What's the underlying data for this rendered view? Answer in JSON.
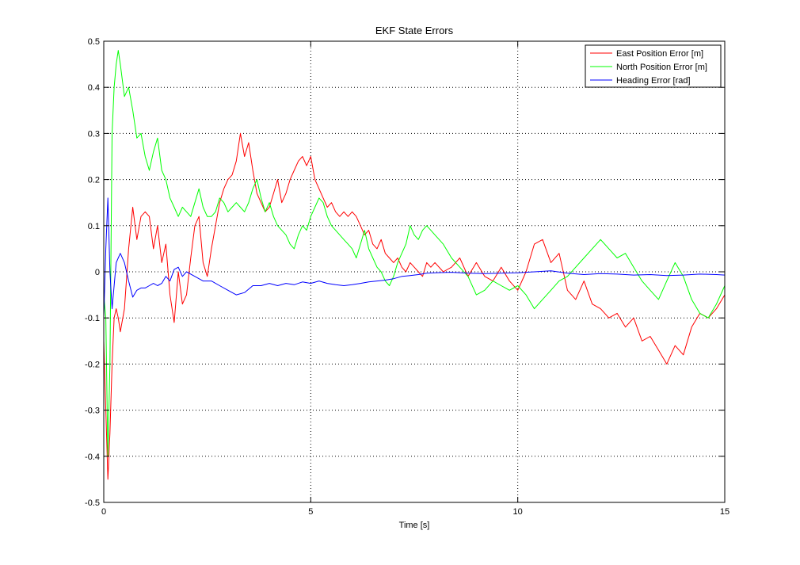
{
  "chart_data": {
    "type": "line",
    "title": "EKF State Errors",
    "xlabel": "Time [s]",
    "ylabel": "",
    "xlim": [
      0,
      15
    ],
    "ylim": [
      -0.5,
      0.5
    ],
    "xticks": [
      0,
      5,
      10,
      15
    ],
    "yticks": [
      -0.5,
      -0.4,
      -0.3,
      -0.2,
      -0.1,
      0,
      0.1,
      0.2,
      0.3,
      0.4,
      0.5
    ],
    "xtick_labels": [
      "0",
      "5",
      "10",
      "15"
    ],
    "ytick_labels": [
      "-0.5",
      "-0.4",
      "-0.3",
      "-0.2",
      "-0.1",
      "0",
      "0.1",
      "0.2",
      "0.3",
      "0.4",
      "0.5"
    ],
    "grid": true,
    "legend_position": "top-right",
    "series": [
      {
        "name": "East Position Error [m]",
        "color": "#ff0000",
        "x": [
          0,
          0.05,
          0.1,
          0.15,
          0.2,
          0.25,
          0.3,
          0.35,
          0.4,
          0.5,
          0.6,
          0.7,
          0.8,
          0.9,
          1.0,
          1.1,
          1.2,
          1.3,
          1.4,
          1.5,
          1.6,
          1.7,
          1.8,
          1.9,
          2.0,
          2.1,
          2.2,
          2.3,
          2.4,
          2.5,
          2.6,
          2.7,
          2.8,
          2.9,
          3.0,
          3.1,
          3.2,
          3.3,
          3.4,
          3.5,
          3.6,
          3.7,
          3.8,
          3.9,
          4.0,
          4.1,
          4.2,
          4.3,
          4.4,
          4.5,
          4.6,
          4.7,
          4.8,
          4.9,
          5.0,
          5.1,
          5.2,
          5.3,
          5.4,
          5.5,
          5.6,
          5.7,
          5.8,
          5.9,
          6.0,
          6.1,
          6.2,
          6.3,
          6.4,
          6.5,
          6.6,
          6.7,
          6.8,
          6.9,
          7.0,
          7.1,
          7.2,
          7.3,
          7.4,
          7.5,
          7.6,
          7.7,
          7.8,
          7.9,
          8.0,
          8.2,
          8.4,
          8.6,
          8.8,
          9.0,
          9.2,
          9.4,
          9.6,
          9.8,
          10.0,
          10.2,
          10.4,
          10.6,
          10.8,
          11.0,
          11.2,
          11.4,
          11.6,
          11.8,
          12.0,
          12.2,
          12.4,
          12.6,
          12.8,
          13.0,
          13.2,
          13.4,
          13.6,
          13.8,
          14.0,
          14.2,
          14.4,
          14.6,
          14.8,
          15.0
        ],
        "values": [
          -0.15,
          -0.3,
          -0.45,
          -0.35,
          -0.2,
          -0.1,
          -0.08,
          -0.1,
          -0.13,
          -0.08,
          0.05,
          0.14,
          0.07,
          0.12,
          0.13,
          0.12,
          0.05,
          0.1,
          0.02,
          0.06,
          -0.05,
          -0.11,
          0.0,
          -0.07,
          -0.05,
          0.03,
          0.1,
          0.12,
          0.02,
          -0.01,
          0.05,
          0.1,
          0.15,
          0.18,
          0.2,
          0.21,
          0.24,
          0.3,
          0.25,
          0.28,
          0.22,
          0.17,
          0.15,
          0.13,
          0.14,
          0.17,
          0.2,
          0.15,
          0.17,
          0.2,
          0.22,
          0.24,
          0.25,
          0.23,
          0.25,
          0.2,
          0.18,
          0.16,
          0.14,
          0.15,
          0.13,
          0.12,
          0.13,
          0.12,
          0.13,
          0.12,
          0.1,
          0.08,
          0.09,
          0.06,
          0.05,
          0.07,
          0.04,
          0.03,
          0.02,
          0.03,
          0.01,
          0.0,
          0.02,
          0.01,
          0.0,
          -0.01,
          0.02,
          0.01,
          0.02,
          0.0,
          0.01,
          0.03,
          -0.01,
          0.02,
          -0.01,
          -0.02,
          0.01,
          -0.02,
          -0.04,
          0.0,
          0.06,
          0.07,
          0.02,
          0.04,
          -0.04,
          -0.06,
          -0.02,
          -0.07,
          -0.08,
          -0.1,
          -0.09,
          -0.12,
          -0.1,
          -0.15,
          -0.14,
          -0.17,
          -0.2,
          -0.16,
          -0.18,
          -0.12,
          -0.09,
          -0.1,
          -0.08,
          -0.05
        ]
      },
      {
        "name": "North Position Error [m]",
        "color": "#00ff00",
        "x": [
          0,
          0.05,
          0.1,
          0.15,
          0.2,
          0.25,
          0.3,
          0.35,
          0.4,
          0.5,
          0.6,
          0.7,
          0.8,
          0.9,
          1.0,
          1.1,
          1.2,
          1.3,
          1.4,
          1.5,
          1.6,
          1.7,
          1.8,
          1.9,
          2.0,
          2.1,
          2.2,
          2.3,
          2.4,
          2.5,
          2.6,
          2.7,
          2.8,
          2.9,
          3.0,
          3.1,
          3.2,
          3.3,
          3.4,
          3.5,
          3.6,
          3.7,
          3.8,
          3.9,
          4.0,
          4.1,
          4.2,
          4.3,
          4.4,
          4.5,
          4.6,
          4.7,
          4.8,
          4.9,
          5.0,
          5.1,
          5.2,
          5.3,
          5.4,
          5.5,
          5.6,
          5.7,
          5.8,
          5.9,
          6.0,
          6.1,
          6.2,
          6.3,
          6.4,
          6.5,
          6.6,
          6.7,
          6.8,
          6.9,
          7.0,
          7.1,
          7.2,
          7.3,
          7.4,
          7.5,
          7.6,
          7.7,
          7.8,
          7.9,
          8.0,
          8.2,
          8.4,
          8.6,
          8.8,
          9.0,
          9.2,
          9.4,
          9.6,
          9.8,
          10.0,
          10.2,
          10.4,
          10.6,
          10.8,
          11.0,
          11.2,
          11.4,
          11.6,
          11.8,
          12.0,
          12.2,
          12.4,
          12.6,
          12.8,
          13.0,
          13.2,
          13.4,
          13.6,
          13.8,
          14.0,
          14.2,
          14.4,
          14.6,
          14.8,
          15.0
        ],
        "values": [
          -0.05,
          -0.1,
          -0.4,
          -0.2,
          0.3,
          0.4,
          0.45,
          0.48,
          0.45,
          0.38,
          0.4,
          0.35,
          0.29,
          0.3,
          0.25,
          0.22,
          0.26,
          0.29,
          0.22,
          0.2,
          0.16,
          0.14,
          0.12,
          0.14,
          0.13,
          0.12,
          0.15,
          0.18,
          0.14,
          0.12,
          0.12,
          0.13,
          0.16,
          0.15,
          0.13,
          0.14,
          0.15,
          0.14,
          0.13,
          0.15,
          0.18,
          0.2,
          0.16,
          0.13,
          0.15,
          0.12,
          0.1,
          0.09,
          0.08,
          0.06,
          0.05,
          0.08,
          0.1,
          0.09,
          0.12,
          0.14,
          0.16,
          0.15,
          0.12,
          0.1,
          0.09,
          0.08,
          0.07,
          0.06,
          0.05,
          0.03,
          0.06,
          0.09,
          0.05,
          0.03,
          0.01,
          0.0,
          -0.02,
          -0.03,
          -0.01,
          0.02,
          0.04,
          0.06,
          0.1,
          0.08,
          0.07,
          0.09,
          0.1,
          0.09,
          0.08,
          0.06,
          0.03,
          0.01,
          -0.01,
          -0.05,
          -0.04,
          -0.02,
          -0.03,
          -0.04,
          -0.03,
          -0.05,
          -0.08,
          -0.06,
          -0.04,
          -0.02,
          -0.01,
          0.01,
          0.03,
          0.05,
          0.07,
          0.05,
          0.03,
          0.04,
          0.01,
          -0.02,
          -0.04,
          -0.06,
          -0.02,
          0.02,
          -0.01,
          -0.06,
          -0.09,
          -0.1,
          -0.07,
          -0.03
        ]
      },
      {
        "name": "Heading Error [rad]",
        "color": "#0000ff",
        "x": [
          0,
          0.05,
          0.1,
          0.15,
          0.2,
          0.25,
          0.3,
          0.35,
          0.4,
          0.5,
          0.6,
          0.7,
          0.8,
          0.9,
          1.0,
          1.1,
          1.2,
          1.3,
          1.4,
          1.5,
          1.6,
          1.7,
          1.8,
          1.9,
          2.0,
          2.2,
          2.4,
          2.6,
          2.8,
          3.0,
          3.2,
          3.4,
          3.6,
          3.8,
          4.0,
          4.2,
          4.4,
          4.6,
          4.8,
          5.0,
          5.2,
          5.4,
          5.6,
          5.8,
          6.0,
          6.2,
          6.4,
          6.6,
          6.8,
          7.0,
          7.2,
          7.4,
          7.6,
          7.8,
          8.0,
          8.4,
          8.8,
          9.2,
          9.6,
          10.0,
          10.4,
          10.8,
          11.2,
          11.6,
          12.0,
          12.4,
          12.8,
          13.2,
          13.6,
          14.0,
          14.4,
          14.8,
          15.0
        ],
        "values": [
          -0.1,
          0.05,
          0.16,
          0.0,
          -0.08,
          -0.03,
          0.02,
          0.03,
          0.04,
          0.02,
          -0.02,
          -0.055,
          -0.04,
          -0.035,
          -0.035,
          -0.03,
          -0.025,
          -0.03,
          -0.025,
          -0.01,
          -0.02,
          0.005,
          0.01,
          -0.01,
          0.0,
          -0.01,
          -0.02,
          -0.02,
          -0.03,
          -0.04,
          -0.05,
          -0.045,
          -0.03,
          -0.03,
          -0.025,
          -0.03,
          -0.025,
          -0.028,
          -0.022,
          -0.025,
          -0.02,
          -0.025,
          -0.028,
          -0.03,
          -0.028,
          -0.025,
          -0.022,
          -0.02,
          -0.018,
          -0.015,
          -0.01,
          -0.008,
          -0.006,
          -0.003,
          -0.002,
          -0.001,
          -0.003,
          -0.004,
          -0.003,
          -0.002,
          0.0,
          0.002,
          -0.003,
          -0.006,
          -0.004,
          -0.005,
          -0.007,
          -0.006,
          -0.008,
          -0.007,
          -0.005,
          -0.006,
          -0.007
        ]
      }
    ]
  }
}
